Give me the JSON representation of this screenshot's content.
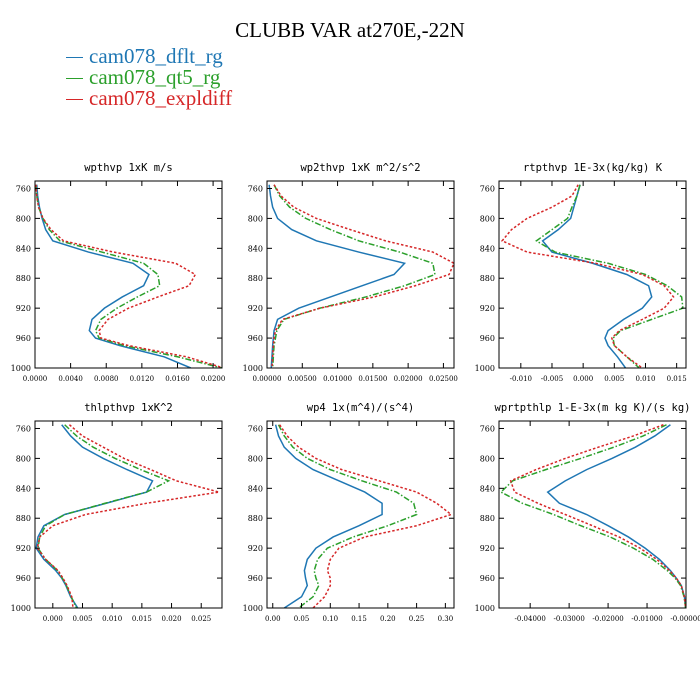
{
  "title": "CLUBB VAR at270E,-22N",
  "legend": [
    {
      "name": "cam078_dflt_rg",
      "color": "#1f77b4",
      "dash": "solid"
    },
    {
      "name": "cam078_qt5_rg",
      "color": "#2ca02c",
      "dash": "dashdot"
    },
    {
      "name": "cam078_expldiff",
      "color": "#d62728",
      "dash": "dotted"
    }
  ],
  "chart_data": [
    {
      "type": "line",
      "title": "wpthvp  1xK m/s",
      "ylim": [
        1000,
        750
      ],
      "yticks": [
        760,
        800,
        840,
        880,
        920,
        960,
        1000
      ],
      "xlim": [
        0,
        0.021
      ],
      "xticks": [
        0,
        0.004,
        0.008,
        0.012,
        0.016,
        0.02
      ],
      "xticklabels": [
        "0.0000",
        "0.0040",
        "0.0080",
        "0.0120",
        "0.0160",
        "0.0200"
      ],
      "y": [
        755,
        770,
        785,
        800,
        815,
        830,
        845,
        860,
        875,
        890,
        905,
        920,
        935,
        950,
        960,
        970,
        985,
        1000
      ],
      "series": [
        {
          "name": "cam078_dflt_rg",
          "values": [
            0.0002,
            0.0003,
            0.0005,
            0.0008,
            0.0012,
            0.002,
            0.006,
            0.011,
            0.0128,
            0.0122,
            0.0098,
            0.0078,
            0.0064,
            0.0061,
            0.0068,
            0.0095,
            0.0145,
            0.0175
          ]
        },
        {
          "name": "cam078_qt5_rg",
          "values": [
            0.0001,
            0.0002,
            0.0004,
            0.0009,
            0.0016,
            0.0028,
            0.0075,
            0.0122,
            0.0138,
            0.014,
            0.0115,
            0.0092,
            0.0074,
            0.0068,
            0.0072,
            0.01,
            0.016,
            0.021
          ]
        },
        {
          "name": "cam078_expldiff",
          "values": [
            0.0001,
            0.0002,
            0.0004,
            0.0009,
            0.0018,
            0.0032,
            0.0088,
            0.0158,
            0.018,
            0.0173,
            0.0138,
            0.0105,
            0.0082,
            0.0072,
            0.0074,
            0.0105,
            0.017,
            0.0212
          ]
        }
      ]
    },
    {
      "type": "line",
      "title": "wp2thvp  1xK m^2/s^2",
      "ylim": [
        1000,
        750
      ],
      "yticks": [
        760,
        800,
        840,
        880,
        920,
        960,
        1000
      ],
      "xlim": [
        0,
        0.0265
      ],
      "xticks": [
        0,
        0.005,
        0.01,
        0.015,
        0.02,
        0.025
      ],
      "xticklabels": [
        "0.00000",
        "0.00500",
        "0.01000",
        "0.01500",
        "0.02000",
        "0.02500"
      ],
      "y": [
        755,
        770,
        785,
        800,
        815,
        830,
        845,
        860,
        875,
        890,
        905,
        920,
        935,
        950,
        960,
        970,
        985,
        1000
      ],
      "series": [
        {
          "name": "cam078_dflt_rg",
          "values": [
            0.0003,
            0.0005,
            0.0008,
            0.0015,
            0.0035,
            0.007,
            0.013,
            0.0195,
            0.018,
            0.0135,
            0.009,
            0.0045,
            0.0015,
            0.001,
            0.0009,
            0.0008,
            0.0007,
            0.0006
          ]
        },
        {
          "name": "cam078_qt5_rg",
          "values": [
            0.001,
            0.0018,
            0.0032,
            0.0055,
            0.009,
            0.013,
            0.0188,
            0.0235,
            0.0238,
            0.0195,
            0.014,
            0.0075,
            0.0024,
            0.0014,
            0.0012,
            0.001,
            0.0009,
            0.0008
          ]
        },
        {
          "name": "cam078_expldiff",
          "values": [
            0.001,
            0.002,
            0.0038,
            0.007,
            0.0118,
            0.0168,
            0.0235,
            0.0265,
            0.0258,
            0.021,
            0.0152,
            0.0075,
            0.0022,
            0.0012,
            0.001,
            0.0009,
            0.0008,
            0.0007
          ]
        }
      ]
    },
    {
      "type": "line",
      "title": "rtpthvp  1E-3x(kg/kg) K",
      "ylim": [
        1000,
        750
      ],
      "yticks": [
        760,
        800,
        840,
        880,
        920,
        960,
        1000
      ],
      "xlim": [
        -0.0135,
        0.0165
      ],
      "xticks": [
        -0.01,
        -0.005,
        0,
        0.005,
        0.01,
        0.015
      ],
      "xticklabels": [
        "-0.010",
        "-0.005",
        "0.000",
        "0.005",
        "0.010",
        "0.015"
      ],
      "y": [
        755,
        770,
        785,
        800,
        815,
        830,
        845,
        860,
        875,
        890,
        905,
        920,
        935,
        950,
        960,
        970,
        985,
        1000
      ],
      "series": [
        {
          "name": "cam078_dflt_rg",
          "values": [
            -0.0005,
            -0.001,
            -0.0015,
            -0.002,
            -0.004,
            -0.0065,
            -0.005,
            0.0015,
            0.007,
            0.0105,
            0.011,
            0.0095,
            0.0065,
            0.004,
            0.0035,
            0.004,
            0.0055,
            0.0068
          ]
        },
        {
          "name": "cam078_qt5_rg",
          "values": [
            -0.0005,
            -0.001,
            -0.0018,
            -0.0025,
            -0.005,
            -0.0075,
            -0.0045,
            0.004,
            0.01,
            0.0135,
            0.0158,
            0.016,
            0.011,
            0.006,
            0.0048,
            0.005,
            0.007,
            0.009
          ]
        },
        {
          "name": "cam078_expldiff",
          "values": [
            -0.0008,
            -0.0018,
            -0.005,
            -0.009,
            -0.0115,
            -0.013,
            -0.009,
            0.002,
            0.0095,
            0.013,
            0.0145,
            0.013,
            0.0095,
            0.0058,
            0.0046,
            0.005,
            0.007,
            0.0095
          ]
        }
      ]
    },
    {
      "type": "line",
      "title": "thlpthvp  1xK^2",
      "ylim": [
        1000,
        750
      ],
      "yticks": [
        760,
        800,
        840,
        880,
        920,
        960,
        1000
      ],
      "xlim": [
        -0.003,
        0.0285
      ],
      "xticks": [
        0,
        0.005,
        0.01,
        0.015,
        0.02,
        0.025
      ],
      "xticklabels": [
        "0.000",
        "0.005",
        "0.010",
        "0.015",
        "0.020",
        "0.025"
      ],
      "y": [
        755,
        770,
        785,
        800,
        815,
        830,
        845,
        860,
        875,
        890,
        905,
        920,
        935,
        950,
        960,
        970,
        985,
        1000
      ],
      "series": [
        {
          "name": "cam078_dflt_rg",
          "values": [
            0.0015,
            0.003,
            0.005,
            0.0085,
            0.0125,
            0.0168,
            0.0158,
            0.009,
            0.002,
            -0.0015,
            -0.0025,
            -0.0028,
            -0.0015,
            0.0005,
            0.0015,
            0.0022,
            0.003,
            0.0042
          ]
        },
        {
          "name": "cam078_qt5_rg",
          "values": [
            0.002,
            0.004,
            0.0068,
            0.0105,
            0.0148,
            0.0195,
            0.0158,
            0.0088,
            0.002,
            -0.0012,
            -0.0022,
            -0.0025,
            -0.0012,
            0.0008,
            0.0016,
            0.0023,
            0.0031,
            0.004
          ]
        },
        {
          "name": "cam078_expldiff",
          "values": [
            0.0028,
            0.005,
            0.0085,
            0.012,
            0.0165,
            0.0208,
            0.028,
            0.0158,
            0.0055,
            0.0,
            -0.0022,
            -0.0026,
            -0.0012,
            0.0009,
            0.0017,
            0.0024,
            0.0032,
            0.0034
          ]
        }
      ]
    },
    {
      "type": "line",
      "title": "wp4  1x(m^4)/(s^4)",
      "ylim": [
        1000,
        750
      ],
      "yticks": [
        760,
        800,
        840,
        880,
        920,
        960,
        1000
      ],
      "xlim": [
        -0.01,
        0.315
      ],
      "xticks": [
        0,
        0.05,
        0.1,
        0.15,
        0.2,
        0.25,
        0.3
      ],
      "xticklabels": [
        "0.00",
        "0.05",
        "0.10",
        "0.15",
        "0.20",
        "0.25",
        "0.30"
      ],
      "y": [
        755,
        770,
        785,
        800,
        815,
        830,
        845,
        860,
        875,
        890,
        905,
        920,
        935,
        950,
        960,
        970,
        985,
        1000
      ],
      "series": [
        {
          "name": "cam078_dflt_rg",
          "values": [
            0.005,
            0.01,
            0.02,
            0.04,
            0.07,
            0.115,
            0.16,
            0.19,
            0.19,
            0.15,
            0.105,
            0.075,
            0.06,
            0.055,
            0.057,
            0.06,
            0.05,
            0.02
          ]
        },
        {
          "name": "cam078_qt5_rg",
          "values": [
            0.01,
            0.02,
            0.035,
            0.06,
            0.1,
            0.155,
            0.215,
            0.245,
            0.25,
            0.2,
            0.14,
            0.095,
            0.078,
            0.072,
            0.075,
            0.08,
            0.07,
            0.045
          ]
        },
        {
          "name": "cam078_expldiff",
          "values": [
            0.012,
            0.025,
            0.045,
            0.075,
            0.12,
            0.185,
            0.25,
            0.285,
            0.31,
            0.25,
            0.16,
            0.115,
            0.1,
            0.095,
            0.1,
            0.1,
            0.09,
            0.07
          ]
        }
      ]
    },
    {
      "type": "line",
      "title": "wprtpthlp  1-E-3x(m kg K)/(s kg)",
      "ylim": [
        1000,
        750
      ],
      "yticks": [
        760,
        800,
        840,
        880,
        920,
        960,
        1000
      ],
      "xlim": [
        -0.048,
        0.0
      ],
      "xticks": [
        -0.04,
        -0.03,
        -0.02,
        -0.01,
        0.0
      ],
      "xticklabels": [
        "-0.04000",
        "-0.03000",
        "-0.02000",
        "-0.01000",
        "-0.00000"
      ],
      "y": [
        755,
        770,
        785,
        800,
        815,
        830,
        845,
        860,
        875,
        890,
        905,
        920,
        935,
        950,
        960,
        970,
        985,
        1000
      ],
      "series": [
        {
          "name": "cam078_dflt_rg",
          "values": [
            -0.004,
            -0.008,
            -0.013,
            -0.019,
            -0.0255,
            -0.031,
            -0.0355,
            -0.0325,
            -0.0255,
            -0.02,
            -0.0148,
            -0.0105,
            -0.0068,
            -0.004,
            -0.0025,
            -0.0012,
            -0.0004,
            -0.0001
          ]
        },
        {
          "name": "cam078_qt5_rg",
          "values": [
            -0.005,
            -0.011,
            -0.0185,
            -0.027,
            -0.036,
            -0.0445,
            -0.0475,
            -0.042,
            -0.034,
            -0.027,
            -0.0195,
            -0.0135,
            -0.0085,
            -0.0048,
            -0.0028,
            -0.0014,
            -0.0005,
            -0.0001
          ]
        },
        {
          "name": "cam078_expldiff",
          "values": [
            -0.0058,
            -0.0135,
            -0.0225,
            -0.031,
            -0.0385,
            -0.045,
            -0.044,
            -0.038,
            -0.031,
            -0.024,
            -0.0172,
            -0.0118,
            -0.0075,
            -0.0042,
            -0.0025,
            -0.0012,
            -0.0004,
            -0.0001
          ]
        }
      ]
    }
  ]
}
